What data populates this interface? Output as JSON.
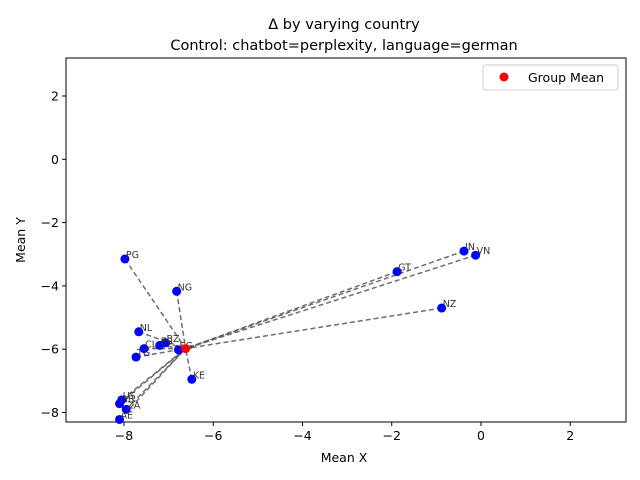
{
  "chart_data": {
    "type": "scatter",
    "title": "Δ by varying country",
    "subtitle": "Control: chatbot=perplexity, language=german",
    "xlabel": "Mean X",
    "ylabel": "Mean Y",
    "xlim": [
      -9.3,
      3.25
    ],
    "ylim": [
      -8.3,
      3.2
    ],
    "xticks": [
      -8,
      -6,
      -4,
      -2,
      0,
      2
    ],
    "yticks": [
      -8,
      -6,
      -4,
      -2,
      0,
      2
    ],
    "grid": false,
    "legend": {
      "placement": "top-right",
      "entries": [
        {
          "label": "Group Mean",
          "color": "#ff0000"
        }
      ]
    },
    "group_mean": {
      "x": -6.62,
      "y": -5.98
    },
    "point_color": "#0000ff",
    "mean_color": "#ff0000",
    "line_color": "#555555",
    "points": [
      {
        "label": "PG",
        "x": -7.98,
        "y": -3.15
      },
      {
        "label": "NG",
        "x": -6.82,
        "y": -4.17
      },
      {
        "label": "NL",
        "x": -7.67,
        "y": -5.45
      },
      {
        "label": "BZ",
        "x": -7.07,
        "y": -5.8
      },
      {
        "label": "ES",
        "x": -7.2,
        "y": -5.88
      },
      {
        "label": "CL",
        "x": -7.55,
        "y": -5.98
      },
      {
        "label": "TG",
        "x": -7.73,
        "y": -6.25
      },
      {
        "label": "EG",
        "x": -6.78,
        "y": -6.02
      },
      {
        "label": "KE",
        "x": -6.48,
        "y": -6.95
      },
      {
        "label": "US",
        "x": -8.05,
        "y": -7.6
      },
      {
        "label": "GB",
        "x": -8.1,
        "y": -7.72
      },
      {
        "label": "ZA",
        "x": -7.95,
        "y": -7.9
      },
      {
        "label": "AE",
        "x": -8.1,
        "y": -8.22
      },
      {
        "label": "GT",
        "x": -1.88,
        "y": -3.55
      },
      {
        "label": "IN",
        "x": -0.38,
        "y": -2.9
      },
      {
        "label": "VN",
        "x": -0.12,
        "y": -3.03
      },
      {
        "label": "NZ",
        "x": -0.88,
        "y": -4.7
      }
    ]
  }
}
